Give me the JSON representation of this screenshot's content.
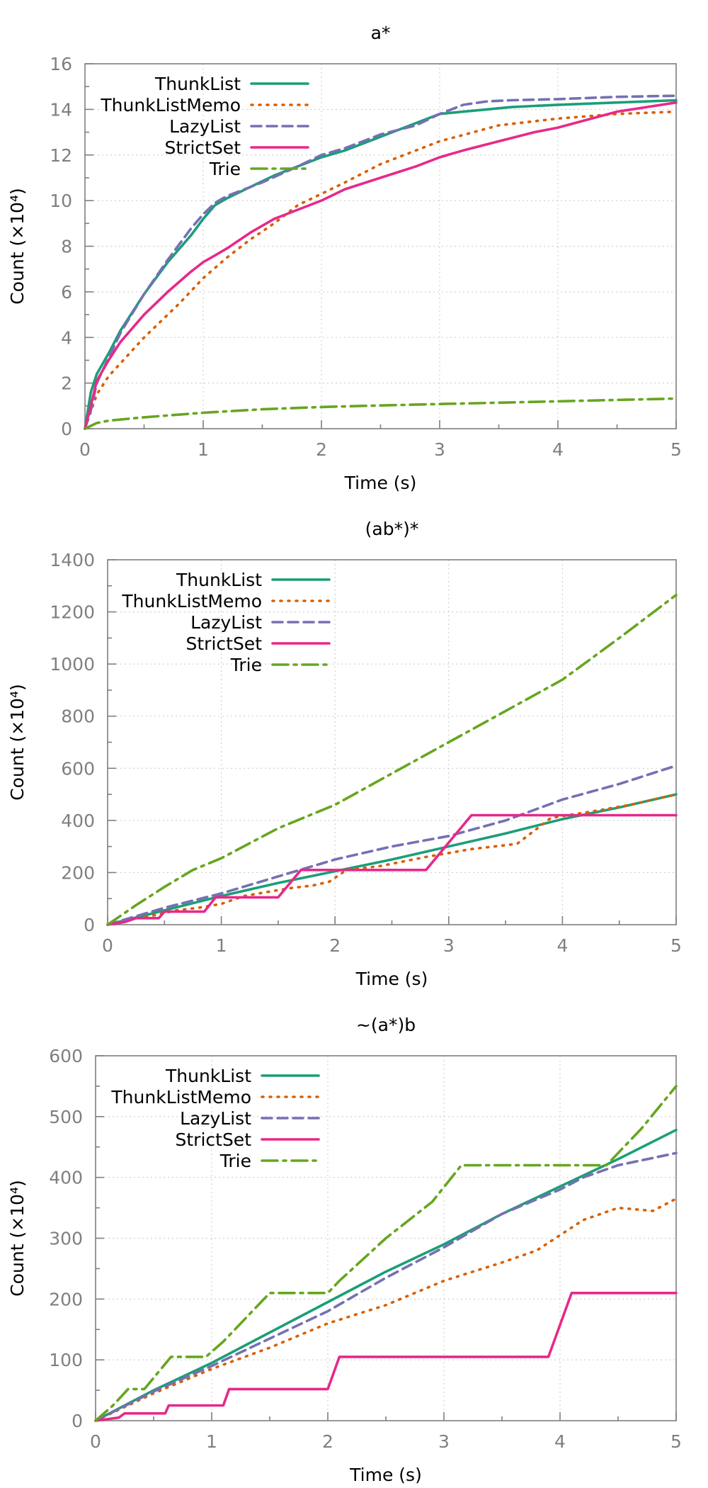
{
  "styles": {
    "ThunkList": {
      "color": "#1b9e77",
      "dash": ""
    },
    "ThunkListMemo": {
      "color": "#d95f02",
      "dash": "2 9"
    },
    "LazyList": {
      "color": "#7570b3",
      "dash": "14 8"
    },
    "StrictSet": {
      "color": "#e7298a",
      "dash": ""
    },
    "Trie": {
      "color": "#66a61e",
      "dash": "22 8 4 8"
    }
  },
  "chart_data": [
    {
      "type": "line",
      "title": "a*",
      "xlabel": "Time (s)",
      "ylabel": "Count (×10⁴)",
      "xlim": [
        0,
        5
      ],
      "ylim": [
        0,
        16
      ],
      "xticks": [
        0,
        1,
        2,
        3,
        4,
        5
      ],
      "yticks": [
        0,
        2,
        4,
        6,
        8,
        10,
        12,
        14,
        16
      ],
      "grid": true,
      "legend": "top-left",
      "series": [
        {
          "name": "ThunkList",
          "x": [
            0,
            0.05,
            0.1,
            0.2,
            0.3,
            0.5,
            0.7,
            0.9,
            1.0,
            1.1,
            1.2,
            1.4,
            1.6,
            1.8,
            2.0,
            2.2,
            2.4,
            2.6,
            2.8,
            3.0,
            3.2,
            3.4,
            3.6,
            3.8,
            4.0,
            4.5,
            5.0
          ],
          "y": [
            0,
            1.6,
            2.4,
            3.3,
            4.3,
            5.9,
            7.3,
            8.5,
            9.2,
            9.8,
            10.1,
            10.6,
            11.1,
            11.5,
            11.9,
            12.2,
            12.6,
            13.0,
            13.4,
            13.8,
            13.9,
            14.0,
            14.1,
            14.15,
            14.2,
            14.3,
            14.4
          ]
        },
        {
          "name": "ThunkListMemo",
          "x": [
            0,
            0.1,
            0.2,
            0.5,
            0.8,
            1.0,
            1.2,
            1.4,
            1.6,
            1.8,
            2.0,
            2.2,
            2.5,
            3.0,
            3.5,
            4.0,
            4.5,
            5.0
          ],
          "y": [
            0,
            1.5,
            2.3,
            4.0,
            5.5,
            6.6,
            7.5,
            8.3,
            9.0,
            9.8,
            10.3,
            10.8,
            11.6,
            12.6,
            13.3,
            13.6,
            13.8,
            13.9
          ]
        },
        {
          "name": "LazyList",
          "x": [
            0,
            0.05,
            0.1,
            0.2,
            0.3,
            0.5,
            0.7,
            0.9,
            1.0,
            1.1,
            1.2,
            1.5,
            1.8,
            2.0,
            2.2,
            2.5,
            2.8,
            3.0,
            3.2,
            3.4,
            3.6,
            4.0,
            4.5,
            5.0
          ],
          "y": [
            0,
            0.8,
            2.0,
            3.1,
            4.2,
            5.9,
            7.4,
            8.8,
            9.4,
            9.9,
            10.2,
            10.8,
            11.5,
            12.0,
            12.3,
            12.9,
            13.3,
            13.8,
            14.2,
            14.35,
            14.4,
            14.45,
            14.55,
            14.6
          ]
        },
        {
          "name": "StrictSet",
          "x": [
            0,
            0.05,
            0.1,
            0.2,
            0.3,
            0.5,
            0.7,
            0.9,
            1.0,
            1.1,
            1.2,
            1.4,
            1.6,
            1.8,
            2.0,
            2.2,
            2.5,
            2.8,
            3.0,
            3.2,
            3.5,
            3.8,
            4.0,
            4.5,
            5.0
          ],
          "y": [
            0,
            1.0,
            2.1,
            3.0,
            3.8,
            5.0,
            6.0,
            6.9,
            7.3,
            7.6,
            7.9,
            8.6,
            9.2,
            9.6,
            10.0,
            10.5,
            11.0,
            11.5,
            11.9,
            12.2,
            12.6,
            13.0,
            13.2,
            13.9,
            14.3
          ]
        },
        {
          "name": "Trie",
          "x": [
            0,
            0.1,
            0.2,
            0.5,
            1.0,
            1.5,
            2.0,
            2.5,
            3.0,
            3.5,
            4.0,
            4.5,
            5.0
          ],
          "y": [
            0,
            0.25,
            0.35,
            0.5,
            0.7,
            0.85,
            0.95,
            1.02,
            1.08,
            1.14,
            1.2,
            1.26,
            1.32
          ]
        }
      ]
    },
    {
      "type": "line",
      "title": "(ab*)*",
      "xlabel": "Time (s)",
      "ylabel": "Count (×10⁴)",
      "xlim": [
        0,
        5
      ],
      "ylim": [
        0,
        1400
      ],
      "xticks": [
        0,
        1,
        2,
        3,
        4,
        5
      ],
      "yticks": [
        0,
        200,
        400,
        600,
        800,
        1000,
        1200,
        1400
      ],
      "grid": true,
      "legend": "top-left",
      "series": [
        {
          "name": "ThunkList",
          "x": [
            0,
            0.5,
            1.0,
            1.5,
            2.0,
            2.5,
            3.0,
            3.5,
            4.0,
            4.5,
            5.0
          ],
          "y": [
            0,
            55,
            110,
            160,
            205,
            250,
            300,
            350,
            405,
            450,
            500
          ]
        },
        {
          "name": "ThunkListMemo",
          "x": [
            0,
            0.2,
            0.4,
            0.6,
            0.8,
            1.0,
            1.2,
            1.4,
            1.6,
            1.8,
            1.95,
            2.1,
            2.4,
            2.8,
            3.2,
            3.6,
            3.75,
            3.9,
            4.2,
            4.6,
            5.0
          ],
          "y": [
            0,
            20,
            35,
            55,
            65,
            80,
            110,
            125,
            140,
            150,
            165,
            210,
            225,
            260,
            290,
            310,
            360,
            410,
            430,
            460,
            500
          ]
        },
        {
          "name": "LazyList",
          "x": [
            0,
            0.5,
            1.0,
            1.5,
            2.0,
            2.5,
            3.0,
            3.5,
            4.0,
            4.5,
            5.0
          ],
          "y": [
            0,
            65,
            120,
            185,
            250,
            300,
            340,
            400,
            480,
            540,
            610
          ]
        },
        {
          "name": "StrictSet",
          "x": [
            0,
            0.15,
            0.25,
            0.45,
            0.5,
            0.85,
            0.95,
            1.5,
            1.7,
            2.8,
            3.2,
            5.0
          ],
          "y": [
            0,
            10,
            25,
            25,
            50,
            50,
            105,
            105,
            210,
            210,
            420,
            420
          ]
        },
        {
          "name": "Trie",
          "x": [
            0,
            0.25,
            0.5,
            0.75,
            1.0,
            1.5,
            2.0,
            2.5,
            3.0,
            3.5,
            4.0,
            4.5,
            5.0
          ],
          "y": [
            0,
            75,
            145,
            210,
            255,
            370,
            460,
            580,
            700,
            820,
            940,
            1100,
            1265
          ]
        }
      ]
    },
    {
      "type": "line",
      "title": "~(a*)b",
      "xlabel": "Time (s)",
      "ylabel": "Count (×10⁴)",
      "xlim": [
        0,
        5
      ],
      "ylim": [
        0,
        600
      ],
      "xticks": [
        0,
        1,
        2,
        3,
        4,
        5
      ],
      "yticks": [
        0,
        100,
        200,
        300,
        400,
        500,
        600
      ],
      "grid": true,
      "legend": "top-left",
      "series": [
        {
          "name": "ThunkList",
          "x": [
            0,
            0.5,
            1.0,
            1.5,
            2.0,
            2.5,
            3.0,
            3.5,
            4.0,
            4.5,
            5.0
          ],
          "y": [
            0,
            50,
            95,
            145,
            195,
            245,
            290,
            340,
            385,
            430,
            478
          ]
        },
        {
          "name": "ThunkListMemo",
          "x": [
            0,
            0.5,
            1.0,
            1.5,
            2.0,
            2.5,
            3.0,
            3.5,
            3.8,
            4.0,
            4.2,
            4.5,
            4.8,
            5.0
          ],
          "y": [
            0,
            45,
            85,
            120,
            160,
            190,
            230,
            260,
            280,
            305,
            330,
            350,
            345,
            365
          ]
        },
        {
          "name": "LazyList",
          "x": [
            0,
            0.5,
            1.0,
            1.5,
            2.0,
            2.5,
            3.0,
            3.5,
            4.0,
            4.2,
            4.5,
            5.0
          ],
          "y": [
            0,
            48,
            90,
            135,
            180,
            235,
            285,
            340,
            380,
            400,
            420,
            440
          ]
        },
        {
          "name": "StrictSet",
          "x": [
            0,
            0.2,
            0.25,
            0.6,
            0.63,
            1.1,
            1.15,
            2.0,
            2.1,
            3.9,
            4.1,
            5.0
          ],
          "y": [
            0,
            5,
            12,
            12,
            25,
            25,
            52,
            52,
            105,
            105,
            210,
            210
          ]
        },
        {
          "name": "Trie",
          "x": [
            0,
            0.15,
            0.28,
            0.42,
            0.65,
            0.95,
            1.1,
            1.5,
            2.0,
            2.1,
            2.5,
            2.9,
            3.15,
            4.0,
            4.4,
            4.7,
            5.0
          ],
          "y": [
            0,
            25,
            52,
            52,
            105,
            105,
            130,
            210,
            210,
            230,
            300,
            360,
            420,
            420,
            420,
            480,
            550
          ]
        }
      ]
    }
  ]
}
